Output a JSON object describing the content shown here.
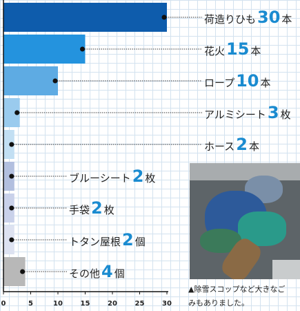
{
  "chart_data": {
    "type": "bar",
    "orientation": "horizontal",
    "categories": [
      "荷造りひも",
      "花火",
      "ロープ",
      "アルミシート",
      "ホース",
      "ブルーシート",
      "手袋",
      "トタン屋根",
      "その他"
    ],
    "values": [
      30,
      15,
      10,
      3,
      2,
      2,
      2,
      2,
      4
    ],
    "units": [
      "本",
      "本",
      "本",
      "枚",
      "本",
      "枚",
      "枚",
      "個",
      "個"
    ],
    "colors": [
      "#0e5cac",
      "#2493de",
      "#5eabe3",
      "#9acbee",
      "#c2dff3",
      "#b2bfdf",
      "#c9d1ea",
      "#dde2f1",
      "#b8b8b8"
    ],
    "xticks": [
      0,
      5,
      10,
      15,
      20,
      25,
      30
    ],
    "xlim": [
      0,
      30
    ],
    "grid": true,
    "number_color": "#1a8bd0"
  },
  "photo": {
    "icon": "photo-of-collected-debris",
    "caption_lines": [
      "▲除雪スコップなど大きなご",
      "みもありました。"
    ]
  }
}
